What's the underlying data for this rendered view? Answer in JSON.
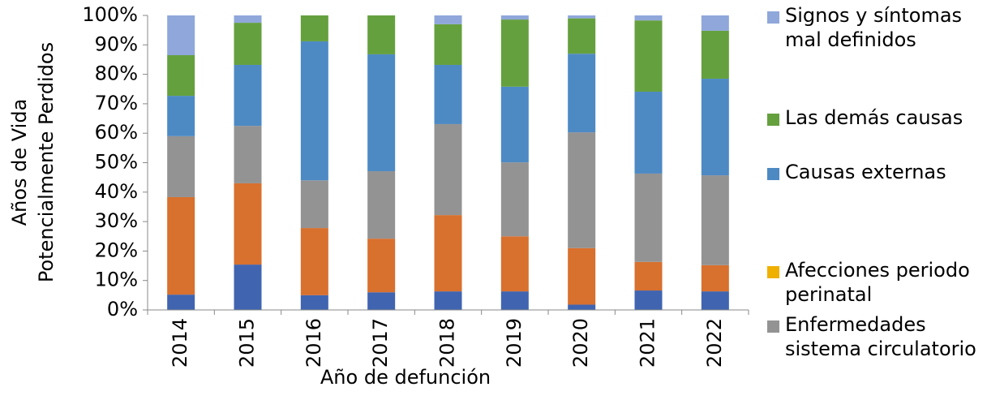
{
  "chart_data": {
    "type": "stacked_bar",
    "xlabel": "Año de defunción",
    "ylabel": [
      "Años de Vida",
      "Potencialmente Perdidos"
    ],
    "categories": [
      "2014",
      "2015",
      "2016",
      "2017",
      "2018",
      "2019",
      "2020",
      "2021",
      "2022"
    ],
    "series": [
      {
        "color": "#4064b0",
        "values": [
          5.2,
          15.4,
          5,
          6,
          6.3,
          6.3,
          1.8,
          6.6,
          6.3
        ]
      },
      {
        "color": "#d8702e",
        "values": [
          33.1,
          27.6,
          22.8,
          18.2,
          25.9,
          18.7,
          19.2,
          9.7,
          8.9
        ]
      },
      {
        "name": "Enfermedades sistema circulatorio",
        "color": "#939393",
        "values": [
          20.7,
          19.5,
          16.2,
          22.9,
          30.9,
          25.1,
          39.3,
          30,
          30.5
        ]
      },
      {
        "name": "Afecciones periodo perinatal",
        "color": "#f0b000",
        "values": [
          0,
          0,
          0,
          0,
          0,
          0,
          0,
          0,
          0
        ]
      },
      {
        "name": "Causas externas",
        "color": "#4d8ac4",
        "values": [
          13.7,
          20.7,
          47.2,
          39.7,
          20.1,
          25.7,
          26.7,
          27.8,
          32.8
        ]
      },
      {
        "name": "Las demás causas",
        "color": "#65a03e",
        "values": [
          13.8,
          14.3,
          8.8,
          13.2,
          13.8,
          22.8,
          12,
          24.2,
          16.3
        ]
      },
      {
        "name": "Signos y síntomas mal definidos",
        "color": "#8fa7da",
        "values": [
          13.5,
          2.5,
          0,
          0,
          3,
          1.4,
          1,
          1.7,
          5.2
        ]
      }
    ],
    "ylim": [
      0,
      100
    ],
    "yticks": [
      {
        "value": 0,
        "label": "0%"
      },
      {
        "value": 10,
        "label": "10%"
      },
      {
        "value": 20,
        "label": "20%"
      },
      {
        "value": 30,
        "label": "30%"
      },
      {
        "value": 40,
        "label": "40%"
      },
      {
        "value": 50,
        "label": "50%"
      },
      {
        "value": 60,
        "label": "60%"
      },
      {
        "value": 70,
        "label": "70%"
      },
      {
        "value": 80,
        "label": "80%"
      },
      {
        "value": 90,
        "label": "90%"
      },
      {
        "value": 100,
        "label": "100%"
      }
    ],
    "legend": "right"
  }
}
